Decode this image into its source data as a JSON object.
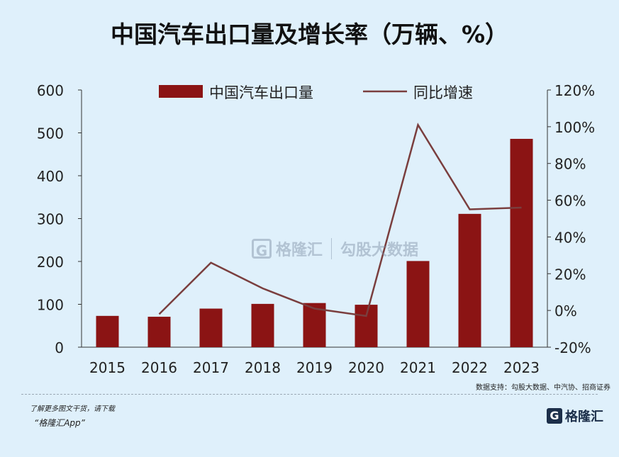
{
  "title": "中国汽车出口量及增长率（万辆、%）",
  "chart_data": {
    "type": "bar",
    "categories": [
      "2015",
      "2016",
      "2017",
      "2018",
      "2019",
      "2020",
      "2021",
      "2022",
      "2023"
    ],
    "series": [
      {
        "name": "中国汽车出口量",
        "type": "bar",
        "axis": "left",
        "values": [
          73,
          71,
          90,
          101,
          103,
          99,
          201,
          311,
          486
        ],
        "color": "#8b1414"
      },
      {
        "name": "同比增速",
        "type": "line",
        "axis": "right",
        "values": [
          null,
          -2,
          26,
          12,
          1,
          -3,
          101,
          55,
          56
        ],
        "color": "#7a3e3e"
      }
    ],
    "left_axis": {
      "min": 0,
      "max": 600,
      "ticks": [
        "0",
        "100",
        "200",
        "300",
        "400",
        "500",
        "600"
      ]
    },
    "right_axis": {
      "min": -20,
      "max": 120,
      "ticks": [
        "-20%",
        "0%",
        "20%",
        "40%",
        "60%",
        "80%",
        "100%",
        "120%"
      ]
    },
    "legend_position": "top"
  },
  "watermark": {
    "logo": "G",
    "name": "格隆汇",
    "name2": "勾股大数据"
  },
  "source": "数据支持：勾股大数据、中汽协、招商证券",
  "promo": {
    "line1": "了解更多图文干货，请下载",
    "line2": "“格隆汇App”"
  },
  "brand": {
    "logo": "G",
    "name": "格隆汇"
  }
}
